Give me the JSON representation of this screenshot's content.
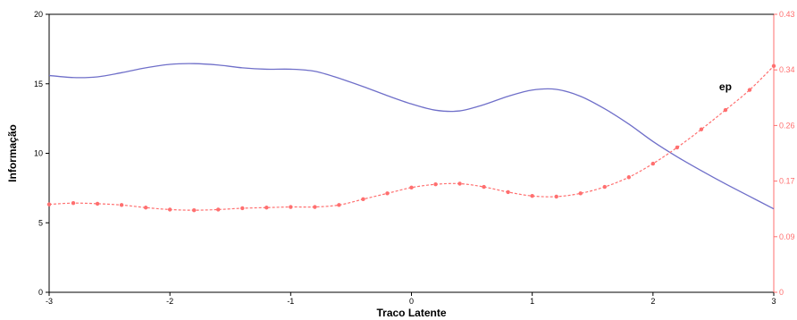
{
  "chart_data": {
    "type": "line",
    "xlabel": "Traco Latente",
    "ylabel": "Informação",
    "xlim": [
      -3,
      3
    ],
    "ylim": [
      0,
      20
    ],
    "y2lim": [
      0,
      0.43
    ],
    "x_ticks": [
      -3,
      -2,
      -1,
      0,
      1,
      2,
      3
    ],
    "y_ticks": [
      0,
      5,
      10,
      15,
      20
    ],
    "y2_ticks": [
      "0",
      "0.09",
      "0.17",
      "0.26",
      "0.34",
      "0.43"
    ],
    "y2_tick_values": [
      0,
      0.086,
      0.172,
      0.258,
      0.344,
      0.43
    ],
    "grid": false,
    "series": [
      {
        "axis": "left",
        "style": "solid",
        "color": "#6f6fc9",
        "x": [
          -3.0,
          -2.8,
          -2.6,
          -2.4,
          -2.2,
          -2.0,
          -1.8,
          -1.6,
          -1.4,
          -1.2,
          -1.0,
          -0.8,
          -0.6,
          -0.4,
          -0.2,
          0.0,
          0.2,
          0.4,
          0.6,
          0.8,
          1.0,
          1.2,
          1.4,
          1.6,
          1.8,
          2.0,
          2.2,
          2.4,
          2.6,
          2.8,
          3.0
        ],
        "values": [
          15.6,
          15.45,
          15.5,
          15.8,
          16.15,
          16.4,
          16.45,
          16.35,
          16.15,
          16.05,
          16.05,
          15.9,
          15.4,
          14.8,
          14.15,
          13.55,
          13.1,
          13.05,
          13.5,
          14.1,
          14.55,
          14.6,
          14.1,
          13.2,
          12.1,
          10.85,
          9.75,
          8.75,
          7.8,
          6.9,
          6.0
        ]
      },
      {
        "name": "ep",
        "axis": "right",
        "style": "dashed-markers",
        "color": "#ff6f6f",
        "x": [
          -3.0,
          -2.8,
          -2.6,
          -2.4,
          -2.2,
          -2.0,
          -1.8,
          -1.6,
          -1.4,
          -1.2,
          -1.0,
          -0.8,
          -0.6,
          -0.4,
          -0.2,
          0.0,
          0.2,
          0.4,
          0.6,
          0.8,
          1.0,
          1.2,
          1.4,
          1.6,
          1.8,
          2.0,
          2.2,
          2.4,
          2.6,
          2.8,
          3.0
        ],
        "values": [
          0.136,
          0.138,
          0.137,
          0.135,
          0.131,
          0.128,
          0.127,
          0.128,
          0.13,
          0.131,
          0.132,
          0.132,
          0.135,
          0.144,
          0.153,
          0.162,
          0.167,
          0.168,
          0.163,
          0.155,
          0.149,
          0.148,
          0.153,
          0.163,
          0.178,
          0.199,
          0.224,
          0.252,
          0.282,
          0.313,
          0.35
        ]
      }
    ]
  }
}
